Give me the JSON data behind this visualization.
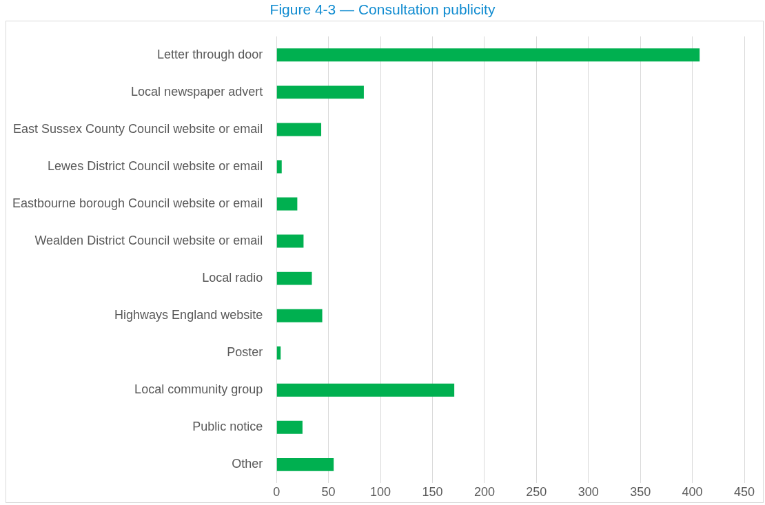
{
  "chart_data": {
    "type": "bar",
    "orientation": "horizontal",
    "title": "Figure 4-3 — Consultation publicity",
    "categories": [
      "Letter through door",
      "Local newspaper advert",
      "East Sussex County Council website or email",
      "Lewes District Council website or email",
      "Eastbourne borough Council website or email",
      "Wealden District Council website or email",
      "Local radio",
      "Highways England website",
      "Poster",
      "Local community group",
      "Public notice",
      "Other"
    ],
    "values": [
      407,
      84,
      43,
      5,
      20,
      26,
      34,
      44,
      4,
      171,
      25,
      55
    ],
    "color": "#00b050",
    "xlim": [
      0,
      450
    ],
    "xticks": [
      0,
      50,
      100,
      150,
      200,
      250,
      300,
      350,
      400,
      450
    ],
    "grid": "x",
    "legend": false
  }
}
